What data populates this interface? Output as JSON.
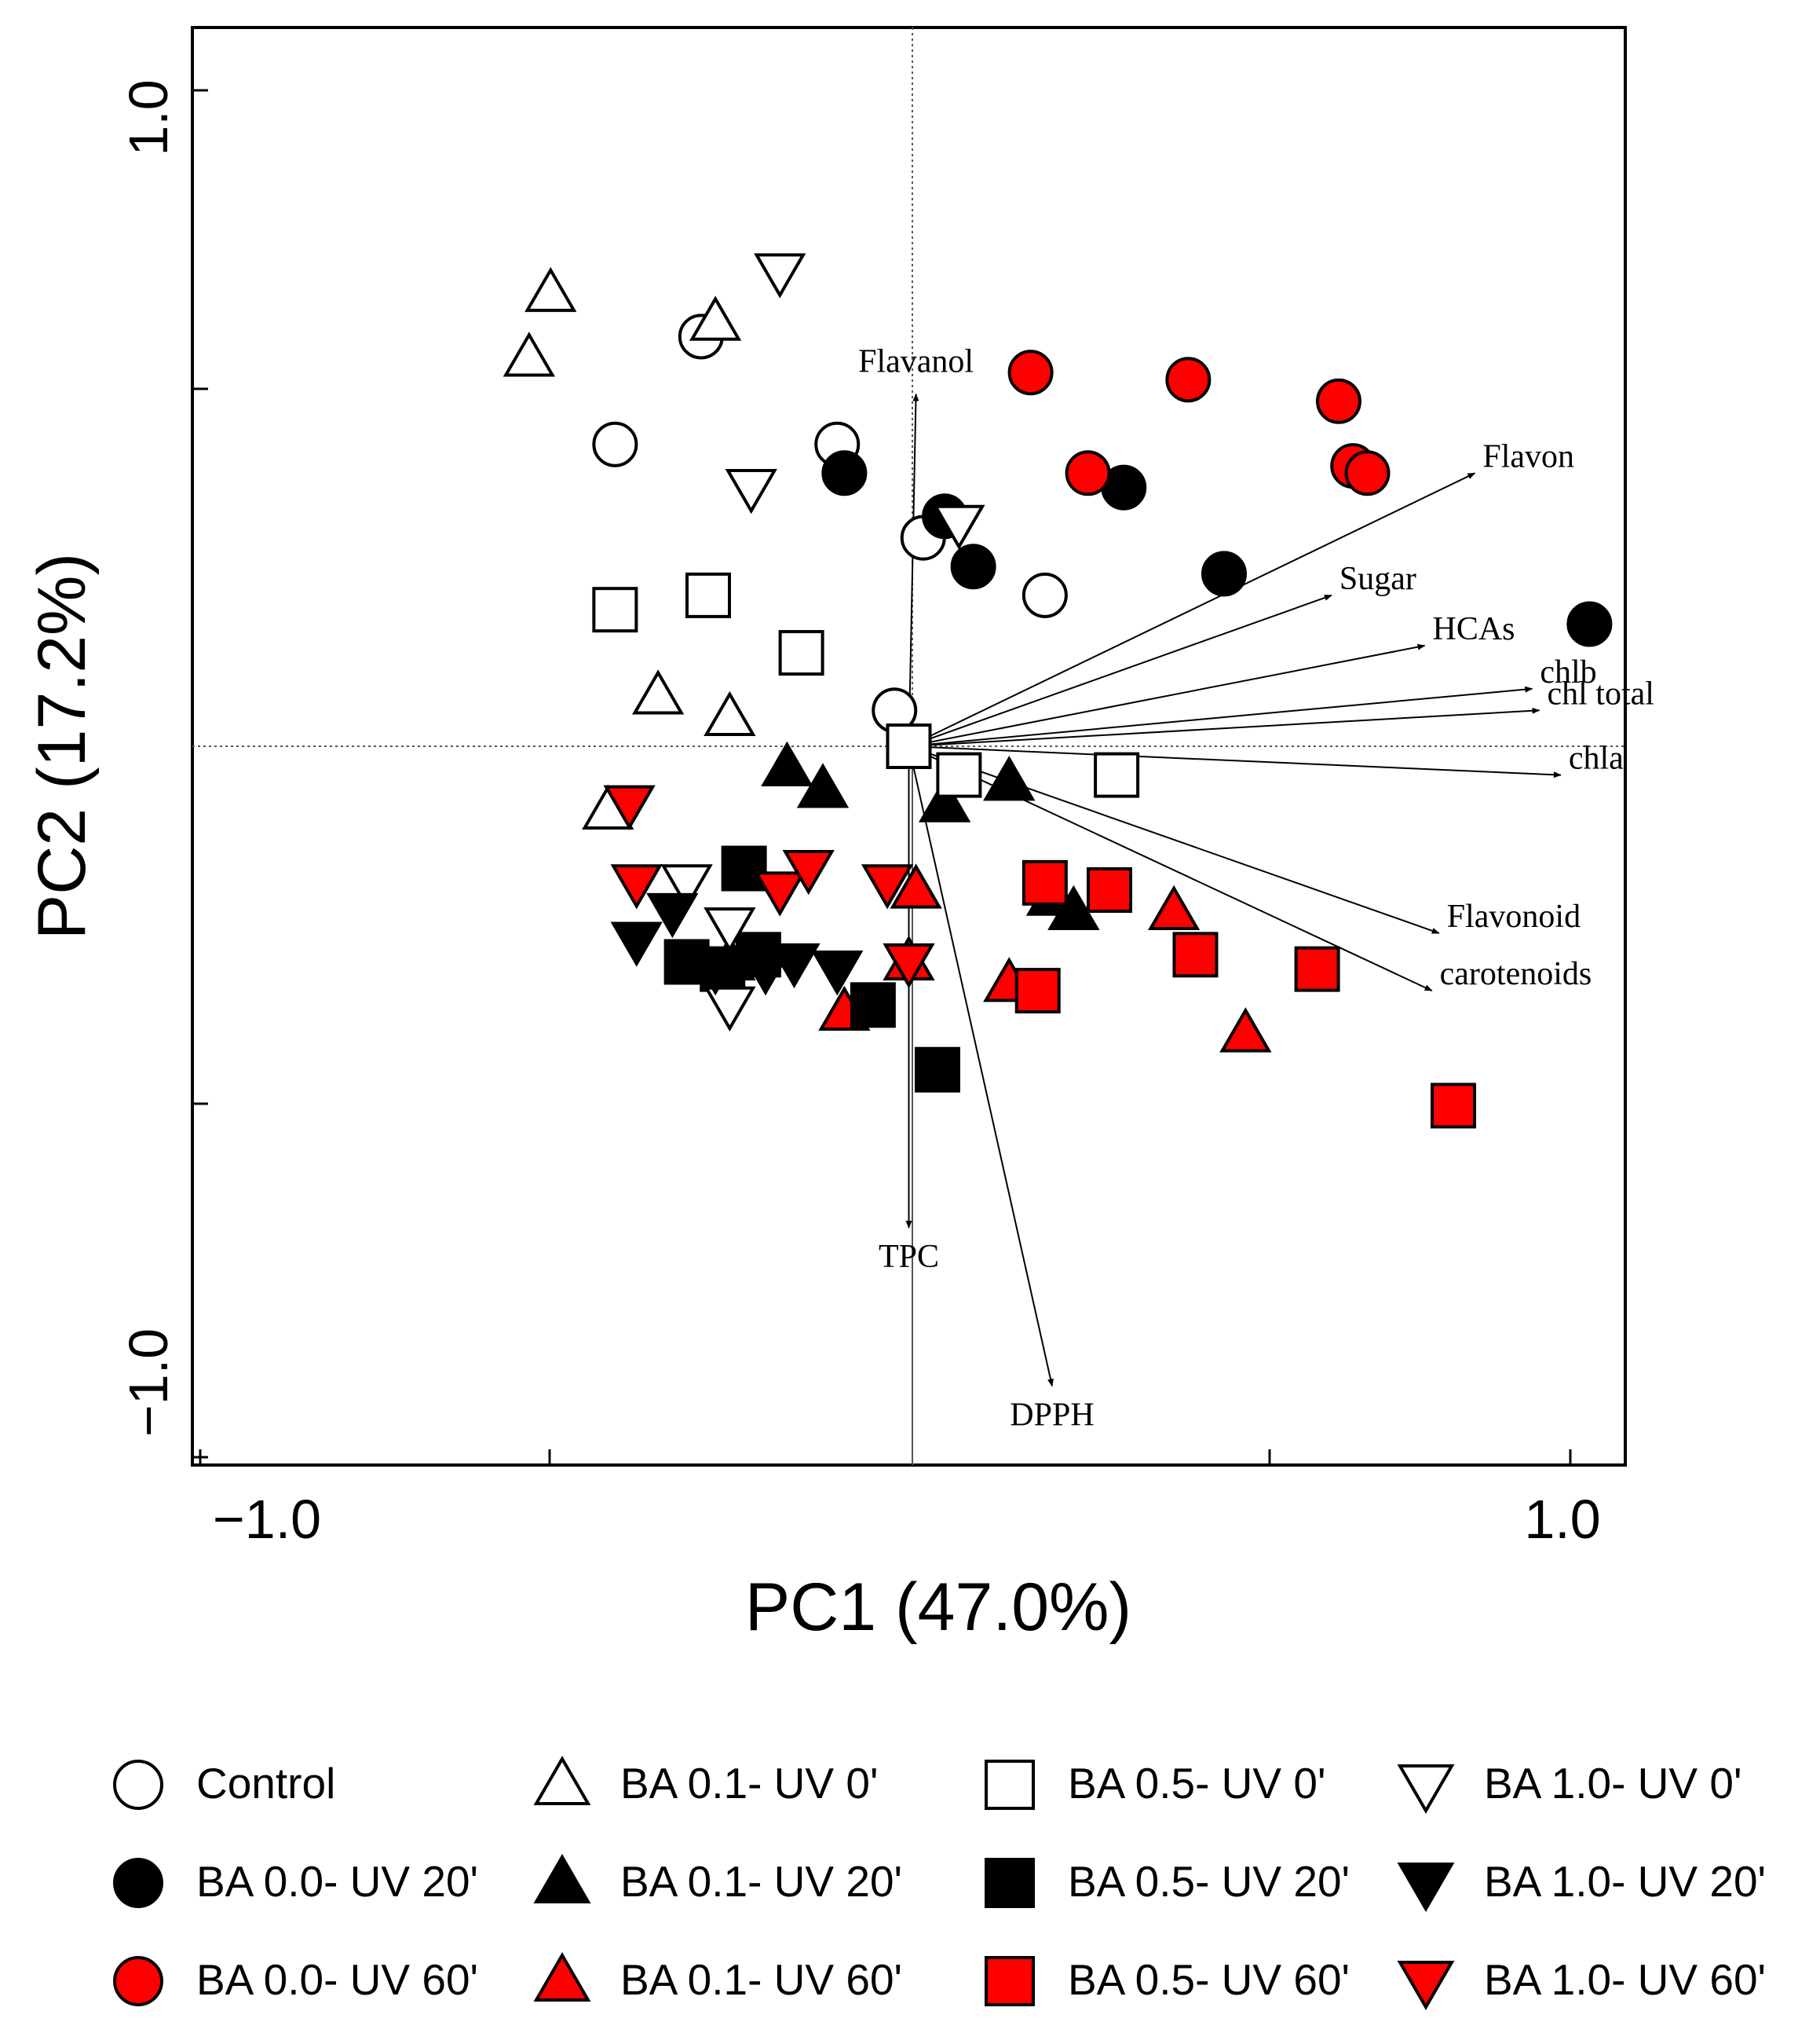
{
  "colors": {
    "red": "#ff0000",
    "black": "#000000",
    "white": "#ffffff",
    "axis": "#000000"
  },
  "chart_data": {
    "type": "scatter",
    "title": "",
    "xlabel": "PC1 (47.0%)",
    "ylabel": "PC2 (17.2%)",
    "xlim": [
      -1.0,
      1.0
    ],
    "ylim": [
      -1.0,
      1.0
    ],
    "x_tick_labels": [
      "−1.0",
      "1.0"
    ],
    "y_tick_labels": [
      "1.0",
      "−1.0"
    ],
    "grid": false,
    "legend_position": "bottom",
    "series": [
      {
        "name": "Control",
        "marker": "circle",
        "fill": "#ffffff",
        "points": [
          [
            -0.41,
            0.42
          ],
          [
            -0.29,
            0.57
          ],
          [
            -0.1,
            0.42
          ],
          [
            0.02,
            0.29
          ],
          [
            0.19,
            0.21
          ],
          [
            -0.02,
            0.05
          ]
        ]
      },
      {
        "name": "BA 0.0- UV 20'",
        "marker": "circle",
        "fill": "#000000",
        "points": [
          [
            -0.09,
            0.38
          ],
          [
            0.05,
            0.32
          ],
          [
            0.09,
            0.25
          ],
          [
            0.3,
            0.36
          ],
          [
            0.44,
            0.24
          ],
          [
            0.95,
            0.17
          ]
        ]
      },
      {
        "name": "BA 0.0- UV 60'",
        "marker": "circle",
        "fill": "#ff0000",
        "points": [
          [
            0.17,
            0.52
          ],
          [
            0.25,
            0.38
          ],
          [
            0.39,
            0.51
          ],
          [
            0.6,
            0.48
          ],
          [
            0.62,
            0.39
          ],
          [
            0.64,
            0.38
          ]
        ]
      },
      {
        "name": "BA 0.1- UV 0'",
        "marker": "triangle-up",
        "fill": "#ffffff",
        "points": [
          [
            -0.5,
            0.63
          ],
          [
            -0.53,
            0.54
          ],
          [
            -0.27,
            0.59
          ],
          [
            -0.35,
            0.07
          ],
          [
            -0.25,
            0.04
          ],
          [
            -0.42,
            -0.09
          ],
          [
            -0.25,
            -0.3
          ]
        ]
      },
      {
        "name": "BA 0.1- UV 20'",
        "marker": "triangle-up",
        "fill": "#000000",
        "points": [
          [
            -0.17,
            -0.03
          ],
          [
            -0.12,
            -0.06
          ],
          [
            0.05,
            -0.08
          ],
          [
            0.14,
            -0.05
          ],
          [
            0.2,
            -0.21
          ],
          [
            0.23,
            -0.23
          ]
        ]
      },
      {
        "name": "BA 0.1- UV 60'",
        "marker": "triangle-up",
        "fill": "#ff0000",
        "points": [
          [
            0.01,
            -0.2
          ],
          [
            0.0,
            -0.3
          ],
          [
            -0.09,
            -0.37
          ],
          [
            0.14,
            -0.33
          ],
          [
            0.37,
            -0.23
          ],
          [
            0.47,
            -0.4
          ]
        ]
      },
      {
        "name": "BA 0.5- UV 0'",
        "marker": "square",
        "fill": "#ffffff",
        "points": [
          [
            -0.41,
            0.19
          ],
          [
            -0.28,
            0.21
          ],
          [
            -0.15,
            0.13
          ],
          [
            0.0,
            0.0
          ],
          [
            0.07,
            -0.04
          ],
          [
            0.29,
            -0.04
          ]
        ]
      },
      {
        "name": "BA 0.5- UV 20'",
        "marker": "square",
        "fill": "#000000",
        "points": [
          [
            -0.23,
            -0.17
          ],
          [
            -0.31,
            -0.3
          ],
          [
            -0.26,
            -0.31
          ],
          [
            -0.21,
            -0.29
          ],
          [
            -0.05,
            -0.36
          ],
          [
            0.04,
            -0.45
          ]
        ]
      },
      {
        "name": "BA 0.5- UV 60'",
        "marker": "square",
        "fill": "#ff0000",
        "points": [
          [
            0.19,
            -0.19
          ],
          [
            0.28,
            -0.2
          ],
          [
            0.4,
            -0.29
          ],
          [
            0.57,
            -0.31
          ],
          [
            0.18,
            -0.34
          ],
          [
            0.76,
            -0.5
          ]
        ]
      },
      {
        "name": "BA 1.0- UV 0'",
        "marker": "triangle-down",
        "fill": "#ffffff",
        "points": [
          [
            -0.18,
            0.66
          ],
          [
            -0.22,
            0.36
          ],
          [
            0.07,
            0.31
          ],
          [
            -0.31,
            -0.19
          ],
          [
            -0.25,
            -0.25
          ],
          [
            -0.25,
            -0.36
          ]
        ]
      },
      {
        "name": "BA 1.0- UV 20'",
        "marker": "triangle-down",
        "fill": "#000000",
        "points": [
          [
            -0.38,
            -0.27
          ],
          [
            -0.33,
            -0.23
          ],
          [
            -0.27,
            -0.31
          ],
          [
            -0.2,
            -0.31
          ],
          [
            -0.16,
            -0.3
          ],
          [
            -0.1,
            -0.31
          ]
        ]
      },
      {
        "name": "BA 1.0- UV 60'",
        "marker": "triangle-down",
        "fill": "#ff0000",
        "points": [
          [
            -0.39,
            -0.08
          ],
          [
            -0.38,
            -0.19
          ],
          [
            -0.18,
            -0.2
          ],
          [
            -0.14,
            -0.17
          ],
          [
            -0.03,
            -0.19
          ],
          [
            0.0,
            -0.3
          ]
        ]
      }
    ],
    "loadings": [
      {
        "label": "Flavanol",
        "x": 0.01,
        "y": 0.49
      },
      {
        "label": "Flavon",
        "x": 0.79,
        "y": 0.38
      },
      {
        "label": "Sugar",
        "x": 0.59,
        "y": 0.21
      },
      {
        "label": "HCAs",
        "x": 0.72,
        "y": 0.14
      },
      {
        "label": "chlb",
        "x": 0.87,
        "y": 0.08
      },
      {
        "label": "chl total",
        "x": 0.88,
        "y": 0.05
      },
      {
        "label": "chla",
        "x": 0.91,
        "y": -0.04
      },
      {
        "label": "Flavonoid",
        "x": 0.74,
        "y": -0.26
      },
      {
        "label": "carotenoids",
        "x": 0.73,
        "y": -0.34
      },
      {
        "label": "TPC",
        "x": 0.0,
        "y": -0.67
      },
      {
        "label": "DPPH",
        "x": 0.2,
        "y": -0.89
      }
    ]
  },
  "legend": [
    {
      "label": "Control",
      "marker": "circle",
      "fill": "#ffffff"
    },
    {
      "label": "BA 0.0- UV 20'",
      "marker": "circle",
      "fill": "#000000"
    },
    {
      "label": "BA 0.0- UV 60'",
      "marker": "circle",
      "fill": "#ff0000"
    },
    {
      "label": "BA 0.1- UV 0'",
      "marker": "triangle-up",
      "fill": "#ffffff"
    },
    {
      "label": "BA 0.1- UV 20'",
      "marker": "triangle-up",
      "fill": "#000000"
    },
    {
      "label": "BA 0.1- UV 60'",
      "marker": "triangle-up",
      "fill": "#ff0000"
    },
    {
      "label": "BA 0.5- UV 0'",
      "marker": "square",
      "fill": "#ffffff"
    },
    {
      "label": "BA 0.5- UV 20'",
      "marker": "square",
      "fill": "#000000"
    },
    {
      "label": "BA 0.5- UV 60'",
      "marker": "square",
      "fill": "#ff0000"
    },
    {
      "label": "BA 1.0- UV 0'",
      "marker": "triangle-down",
      "fill": "#ffffff"
    },
    {
      "label": "BA 1.0- UV 20'",
      "marker": "triangle-down",
      "fill": "#000000"
    },
    {
      "label": "BA 1.0- UV 60'",
      "marker": "triangle-down",
      "fill": "#ff0000"
    }
  ]
}
